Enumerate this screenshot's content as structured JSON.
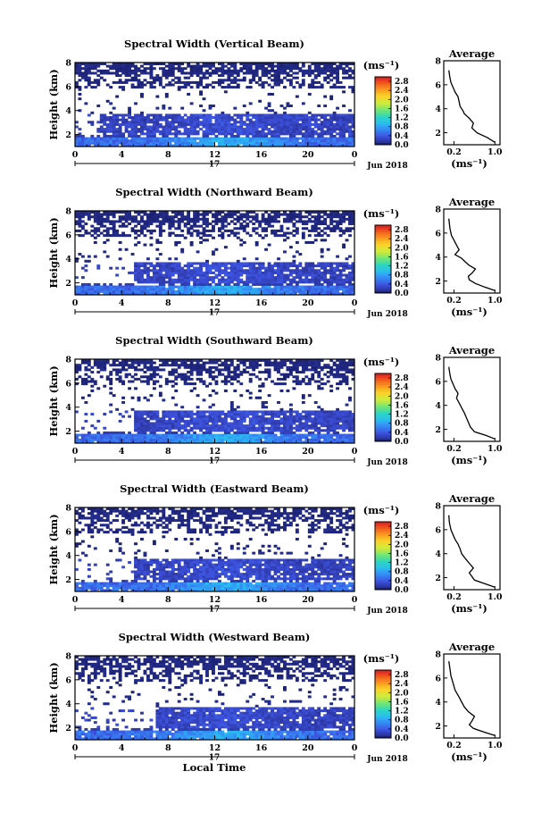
{
  "chart_data": [
    {
      "type": "heatmap",
      "title": "Spectral Width (Vertical Beam)",
      "ylabel": "Height (km)",
      "xticks": [
        "0",
        "4",
        "8",
        "12",
        "16",
        "20",
        "0"
      ],
      "yticks": [
        "2",
        "4",
        "6",
        "8"
      ],
      "date_day": "17",
      "date_label": "Jun 2018",
      "xlim": [
        0,
        24
      ],
      "ylim": [
        1,
        8
      ],
      "colorbar": {
        "unit": "(ms⁻¹)",
        "ticks": [
          "0.0",
          "0.4",
          "0.8",
          "1.2",
          "1.6",
          "2.0",
          "2.4",
          "2.8"
        ],
        "range": [
          0,
          3.0
        ]
      },
      "average_profile": {
        "title": "Average",
        "xlabel": "(ms⁻¹)",
        "xticks": [
          "0.2",
          "1.0"
        ],
        "yticks": [
          "2",
          "4",
          "6",
          "8"
        ],
        "xlim": [
          0,
          1.1
        ],
        "ylim": [
          1,
          8
        ],
        "x": [
          1.0,
          0.85,
          0.65,
          0.55,
          0.58,
          0.5,
          0.45,
          0.4,
          0.38,
          0.35,
          0.32,
          0.3,
          0.28,
          0.22,
          0.18,
          0.14,
          0.12,
          0.1
        ],
        "y": [
          1.2,
          1.6,
          2.0,
          2.4,
          2.8,
          3.2,
          3.4,
          3.6,
          3.8,
          4.0,
          4.2,
          4.6,
          5.0,
          5.4,
          5.8,
          6.2,
          6.6,
          7.2
        ]
      }
    },
    {
      "type": "heatmap",
      "title": "Spectral Width (Northward Beam)",
      "ylabel": "Height (km)",
      "xticks": [
        "0",
        "4",
        "8",
        "12",
        "16",
        "20",
        "0"
      ],
      "yticks": [
        "2",
        "4",
        "6",
        "8"
      ],
      "date_day": "17",
      "date_label": "Jun 2018",
      "xlim": [
        0,
        24
      ],
      "ylim": [
        1,
        8
      ],
      "colorbar": {
        "unit": "(ms⁻¹)",
        "ticks": [
          "0.0",
          "0.4",
          "0.8",
          "1.2",
          "1.6",
          "2.0",
          "2.4",
          "2.8"
        ],
        "range": [
          0,
          3.0
        ]
      },
      "average_profile": {
        "title": "Average",
        "xlabel": "(ms⁻¹)",
        "xticks": [
          "0.2",
          "1.0"
        ],
        "yticks": [
          "2",
          "4",
          "6",
          "8"
        ],
        "xlim": [
          0,
          1.1
        ],
        "ylim": [
          1,
          8
        ],
        "x": [
          1.0,
          0.8,
          0.62,
          0.5,
          0.48,
          0.56,
          0.62,
          0.5,
          0.42,
          0.35,
          0.22,
          0.3,
          0.25,
          0.2,
          0.15,
          0.12,
          0.1
        ],
        "y": [
          1.2,
          1.5,
          1.8,
          2.1,
          2.4,
          2.7,
          3.0,
          3.3,
          3.6,
          3.9,
          4.2,
          4.6,
          5.0,
          5.4,
          5.8,
          6.4,
          7.2
        ]
      }
    },
    {
      "type": "heatmap",
      "title": "Spectral Width (Southward Beam)",
      "ylabel": "Height (km)",
      "xticks": [
        "0",
        "4",
        "8",
        "12",
        "16",
        "20",
        "0"
      ],
      "yticks": [
        "2",
        "4",
        "6",
        "8"
      ],
      "date_day": "17",
      "date_label": "Jun 2018",
      "xlim": [
        0,
        24
      ],
      "ylim": [
        1,
        8
      ],
      "colorbar": {
        "unit": "(ms⁻¹)",
        "ticks": [
          "0.0",
          "0.4",
          "0.8",
          "1.2",
          "1.6",
          "2.0",
          "2.4",
          "2.8"
        ],
        "range": [
          0,
          3.0
        ]
      },
      "average_profile": {
        "title": "Average",
        "xlabel": "(ms⁻¹)",
        "xticks": [
          "0.2",
          "1.0"
        ],
        "yticks": [
          "2",
          "4",
          "6",
          "8"
        ],
        "xlim": [
          0,
          1.1
        ],
        "ylim": [
          1,
          8
        ],
        "x": [
          1.0,
          0.82,
          0.6,
          0.52,
          0.48,
          0.44,
          0.4,
          0.35,
          0.3,
          0.25,
          0.28,
          0.22,
          0.18,
          0.14,
          0.12,
          0.1
        ],
        "y": [
          1.2,
          1.5,
          1.8,
          2.2,
          2.6,
          3.0,
          3.4,
          3.8,
          4.2,
          4.6,
          5.0,
          5.4,
          5.8,
          6.2,
          6.6,
          7.2
        ]
      }
    },
    {
      "type": "heatmap",
      "title": "Spectral Width (Eastward Beam)",
      "ylabel": "Height (km)",
      "xticks": [
        "0",
        "4",
        "8",
        "12",
        "16",
        "20",
        "0"
      ],
      "yticks": [
        "2",
        "4",
        "6",
        "8"
      ],
      "date_day": "17",
      "date_label": "Jun 2018",
      "xlim": [
        0,
        24
      ],
      "ylim": [
        1,
        8
      ],
      "colorbar": {
        "unit": "(ms⁻¹)",
        "ticks": [
          "0.0",
          "0.4",
          "0.8",
          "1.2",
          "1.6",
          "2.0",
          "2.4",
          "2.8"
        ],
        "range": [
          0,
          3.0
        ]
      },
      "average_profile": {
        "title": "Average",
        "xlabel": "(ms⁻¹)",
        "xticks": [
          "0.2",
          "1.0"
        ],
        "yticks": [
          "2",
          "4",
          "6",
          "8"
        ],
        "xlim": [
          0,
          1.1
        ],
        "ylim": [
          1,
          8
        ],
        "x": [
          1.0,
          0.8,
          0.6,
          0.55,
          0.5,
          0.58,
          0.5,
          0.42,
          0.35,
          0.32,
          0.28,
          0.22,
          0.18,
          0.14,
          0.11,
          0.1
        ],
        "y": [
          1.2,
          1.5,
          1.8,
          2.1,
          2.4,
          2.8,
          3.2,
          3.6,
          4.0,
          4.4,
          4.8,
          5.2,
          5.6,
          6.0,
          6.6,
          7.2
        ]
      }
    },
    {
      "type": "heatmap",
      "title": "Spectral Width (Westward Beam)",
      "ylabel": "Height (km)",
      "xlabel": "Local Time",
      "xticks": [
        "0",
        "4",
        "8",
        "12",
        "16",
        "20",
        "0"
      ],
      "yticks": [
        "2",
        "4",
        "6",
        "8"
      ],
      "date_day": "17",
      "date_label": "Jun 2018",
      "xlim": [
        0,
        24
      ],
      "ylim": [
        1,
        8
      ],
      "colorbar": {
        "unit": "(ms⁻¹)",
        "ticks": [
          "0.0",
          "0.4",
          "0.8",
          "1.2",
          "1.6",
          "2.0",
          "2.4",
          "2.8"
        ],
        "range": [
          0,
          3.0
        ]
      },
      "average_profile": {
        "title": "Average",
        "xlabel": "(ms⁻¹)",
        "xticks": [
          "0.2",
          "1.0"
        ],
        "yticks": [
          "2",
          "4",
          "6",
          "8"
        ],
        "xlim": [
          0,
          1.1
        ],
        "ylim": [
          1,
          8
        ],
        "x": [
          1.0,
          0.78,
          0.58,
          0.5,
          0.55,
          0.6,
          0.48,
          0.4,
          0.35,
          0.3,
          0.22,
          0.18,
          0.14,
          0.12,
          0.1
        ],
        "y": [
          1.2,
          1.5,
          1.8,
          2.1,
          2.4,
          2.8,
          3.2,
          3.6,
          4.0,
          4.4,
          5.0,
          5.6,
          6.2,
          6.8,
          7.4
        ]
      }
    }
  ]
}
